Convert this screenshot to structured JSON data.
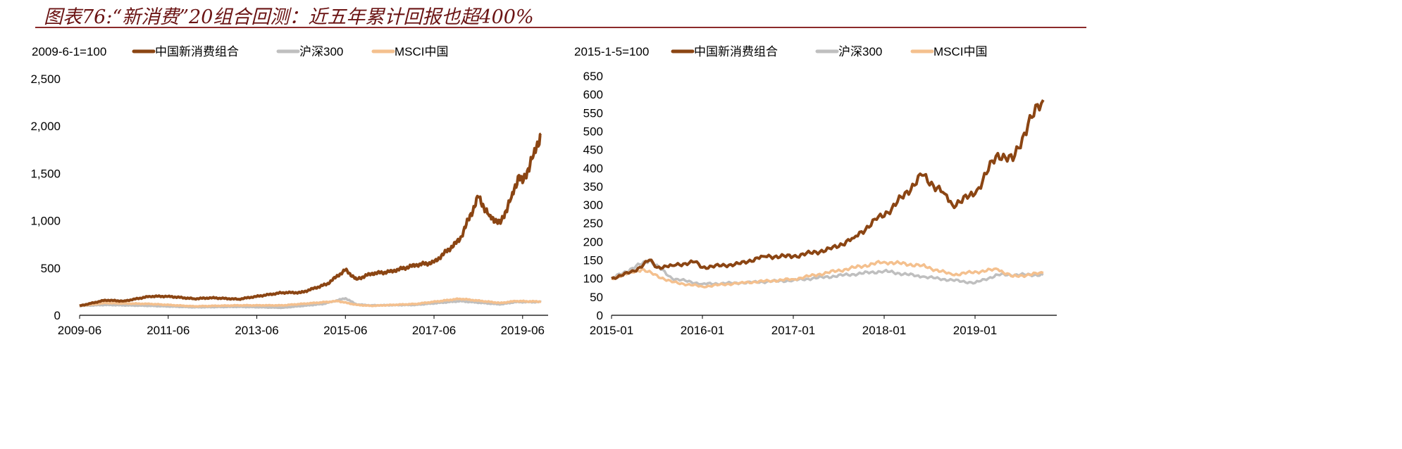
{
  "title": "图表76:“新消费”20组合回测：近五年累计回报也超400%",
  "colors": {
    "portfolio": "#8B4513",
    "hs300": "#BFBFBF",
    "msci": "#F4C08E",
    "title": "#6b1414"
  },
  "chart_data": [
    {
      "type": "line",
      "base_label": "2009-6-1=100",
      "ylim": [
        0,
        2500
      ],
      "yticks": [
        "0",
        "500",
        "1,000",
        "1,500",
        "2,000",
        "2,500"
      ],
      "ytick_values": [
        0,
        500,
        1000,
        1500,
        2000,
        2500
      ],
      "xlim": [
        "2009-06",
        "2019-11"
      ],
      "xticks": [
        "2009-06",
        "2011-06",
        "2013-06",
        "2015-06",
        "2017-06",
        "2019-06"
      ],
      "legend_position": "top",
      "grid": false,
      "series": [
        {
          "name": "中国新消费组合",
          "color": "#8B4513",
          "points": [
            [
              "2009-06",
              100
            ],
            [
              "2010-01",
              160
            ],
            [
              "2010-06",
              150
            ],
            [
              "2011-01",
              200
            ],
            [
              "2011-06",
              200
            ],
            [
              "2012-01",
              175
            ],
            [
              "2012-06",
              185
            ],
            [
              "2013-01",
              170
            ],
            [
              "2013-06",
              200
            ],
            [
              "2014-01",
              240
            ],
            [
              "2014-06",
              240
            ],
            [
              "2015-01",
              330
            ],
            [
              "2015-06",
              480
            ],
            [
              "2015-09",
              380
            ],
            [
              "2016-01",
              440
            ],
            [
              "2016-06",
              460
            ],
            [
              "2017-01",
              530
            ],
            [
              "2017-06",
              560
            ],
            [
              "2018-01",
              800
            ],
            [
              "2018-06",
              1250
            ],
            [
              "2018-09",
              1050
            ],
            [
              "2018-12",
              970
            ],
            [
              "2019-03",
              1250
            ],
            [
              "2019-05",
              1480
            ],
            [
              "2019-06",
              1400
            ],
            [
              "2019-09",
              1700
            ],
            [
              "2019-11",
              1920
            ]
          ]
        },
        {
          "name": "沪深300",
          "color": "#BFBFBF",
          "points": [
            [
              "2009-06",
              100
            ],
            [
              "2010-01",
              110
            ],
            [
              "2011-01",
              100
            ],
            [
              "2012-01",
              85
            ],
            [
              "2013-01",
              90
            ],
            [
              "2014-01",
              80
            ],
            [
              "2014-12",
              120
            ],
            [
              "2015-06",
              180
            ],
            [
              "2015-09",
              115
            ],
            [
              "2016-01",
              105
            ],
            [
              "2017-01",
              110
            ],
            [
              "2018-01",
              150
            ],
            [
              "2018-12",
              115
            ],
            [
              "2019-04",
              140
            ],
            [
              "2019-11",
              140
            ]
          ]
        },
        {
          "name": "MSCI中国",
          "color": "#F4C08E",
          "points": [
            [
              "2009-06",
              100
            ],
            [
              "2010-01",
              130
            ],
            [
              "2011-01",
              120
            ],
            [
              "2012-01",
              95
            ],
            [
              "2013-01",
              105
            ],
            [
              "2014-01",
              105
            ],
            [
              "2015-04",
              150
            ],
            [
              "2015-09",
              110
            ],
            [
              "2016-01",
              100
            ],
            [
              "2017-01",
              120
            ],
            [
              "2018-01",
              175
            ],
            [
              "2018-12",
              130
            ],
            [
              "2019-04",
              150
            ],
            [
              "2019-11",
              145
            ]
          ]
        }
      ]
    },
    {
      "type": "line",
      "base_label": "2015-1-5=100",
      "ylim": [
        0,
        650
      ],
      "yticks": [
        "0",
        "50",
        "100",
        "150",
        "200",
        "250",
        "300",
        "350",
        "400",
        "450",
        "500",
        "550",
        "600",
        "650"
      ],
      "ytick_values": [
        0,
        50,
        100,
        150,
        200,
        250,
        300,
        350,
        400,
        450,
        500,
        550,
        600,
        650
      ],
      "xlim": [
        "2015-01",
        "2019-10"
      ],
      "xticks": [
        "2015-01",
        "2016-01",
        "2017-01",
        "2018-01",
        "2019-01"
      ],
      "legend_position": "top",
      "grid": false,
      "series": [
        {
          "name": "中国新消费组合",
          "color": "#8B4513",
          "points": [
            [
              "2015-01",
              100
            ],
            [
              "2015-04",
              120
            ],
            [
              "2015-06",
              150
            ],
            [
              "2015-07",
              130
            ],
            [
              "2015-09",
              135
            ],
            [
              "2015-12",
              145
            ],
            [
              "2016-01",
              130
            ],
            [
              "2016-06",
              140
            ],
            [
              "2016-09",
              160
            ],
            [
              "2017-01",
              160
            ],
            [
              "2017-06",
              180
            ],
            [
              "2017-09",
              210
            ],
            [
              "2017-12",
              260
            ],
            [
              "2018-02",
              290
            ],
            [
              "2018-06",
              380
            ],
            [
              "2018-09",
              330
            ],
            [
              "2018-10",
              300
            ],
            [
              "2019-01",
              330
            ],
            [
              "2019-04",
              440
            ],
            [
              "2019-06",
              420
            ],
            [
              "2019-08",
              520
            ],
            [
              "2019-10",
              585
            ]
          ]
        },
        {
          "name": "沪深300",
          "color": "#BFBFBF",
          "points": [
            [
              "2015-01",
              100
            ],
            [
              "2015-06",
              150
            ],
            [
              "2015-09",
              100
            ],
            [
              "2016-01",
              85
            ],
            [
              "2016-06",
              88
            ],
            [
              "2017-01",
              95
            ],
            [
              "2018-01",
              120
            ],
            [
              "2018-06",
              105
            ],
            [
              "2019-01",
              88
            ],
            [
              "2019-04",
              110
            ],
            [
              "2019-10",
              110
            ]
          ]
        },
        {
          "name": "MSCI中国",
          "color": "#F4C08E",
          "points": [
            [
              "2015-01",
              100
            ],
            [
              "2015-05",
              125
            ],
            [
              "2015-09",
              90
            ],
            [
              "2016-01",
              78
            ],
            [
              "2016-06",
              88
            ],
            [
              "2017-01",
              98
            ],
            [
              "2018-01",
              145
            ],
            [
              "2018-06",
              135
            ],
            [
              "2018-10",
              110
            ],
            [
              "2019-04",
              125
            ],
            [
              "2019-06",
              105
            ],
            [
              "2019-10",
              115
            ]
          ]
        }
      ]
    }
  ]
}
